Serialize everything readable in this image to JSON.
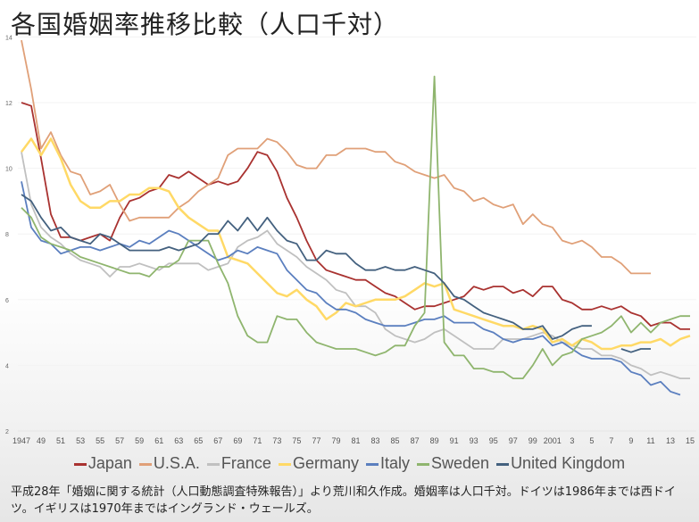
{
  "title": "各国婚姻率推移比較（人口千対）",
  "note": "平成28年「婚姻に関する統計（人口動態調査特殊報告）」より荒川和久作成。婚姻率は人口千対。ドイツは1986年までは西ドイツ。イギリスは1970年まではイングランド・ウェールズ。",
  "legend": [
    {
      "label": "Japan",
      "color": "#a93230"
    },
    {
      "label": "U.S.A.",
      "color": "#e0a078"
    },
    {
      "label": "France",
      "color": "#c0c0c0"
    },
    {
      "label": "Germany",
      "color": "#ffd966"
    },
    {
      "label": "Italy",
      "color": "#5b7fbf"
    },
    {
      "label": "Sweden",
      "color": "#8fb56e"
    },
    {
      "label": "United Kingdom",
      "color": "#44617f"
    }
  ],
  "chart_data": {
    "type": "line",
    "title": "各国婚姻率推移比較（人口千対）",
    "xlabel": "",
    "ylabel": "",
    "ylim": [
      2,
      14
    ],
    "yticks": [
      2,
      4,
      6,
      8,
      10,
      12,
      14
    ],
    "grid": true,
    "legend_position": "bottom",
    "x_tick_labels": [
      "1947",
      "49",
      "51",
      "53",
      "55",
      "57",
      "59",
      "61",
      "63",
      "65",
      "67",
      "69",
      "71",
      "73",
      "75",
      "77",
      "79",
      "81",
      "83",
      "85",
      "87",
      "89",
      "91",
      "93",
      "95",
      "97",
      "99",
      "2001",
      "3",
      "5",
      "7",
      "9",
      "11",
      "13",
      "15"
    ],
    "x": [
      1947,
      1948,
      1949,
      1950,
      1951,
      1952,
      1953,
      1954,
      1955,
      1956,
      1957,
      1958,
      1959,
      1960,
      1961,
      1962,
      1963,
      1964,
      1965,
      1966,
      1967,
      1968,
      1969,
      1970,
      1971,
      1972,
      1973,
      1974,
      1975,
      1976,
      1977,
      1978,
      1979,
      1980,
      1981,
      1982,
      1983,
      1984,
      1985,
      1986,
      1987,
      1988,
      1989,
      1990,
      1991,
      1992,
      1993,
      1994,
      1995,
      1996,
      1997,
      1998,
      1999,
      2000,
      2001,
      2002,
      2003,
      2004,
      2005,
      2006,
      2007,
      2008,
      2009,
      2010,
      2011,
      2012,
      2013,
      2014,
      2015
    ],
    "series": [
      {
        "name": "Japan",
        "color": "#a93230",
        "values": [
          12.0,
          11.9,
          10.3,
          8.6,
          7.9,
          7.9,
          7.8,
          7.9,
          8.0,
          7.8,
          8.5,
          9.0,
          9.1,
          9.3,
          9.4,
          9.8,
          9.7,
          9.9,
          9.7,
          9.5,
          9.6,
          9.5,
          9.6,
          10.0,
          10.5,
          10.4,
          9.9,
          9.1,
          8.5,
          7.8,
          7.2,
          6.9,
          6.8,
          6.7,
          6.6,
          6.6,
          6.4,
          6.2,
          6.1,
          5.9,
          5.7,
          5.8,
          5.8,
          5.9,
          6.0,
          6.1,
          6.4,
          6.3,
          6.4,
          6.4,
          6.2,
          6.3,
          6.1,
          6.4,
          6.4,
          6.0,
          5.9,
          5.7,
          5.7,
          5.8,
          5.7,
          5.8,
          5.6,
          5.5,
          5.2,
          5.3,
          5.3,
          5.1,
          5.1
        ]
      },
      {
        "name": "U.S.A.",
        "color": "#e0a078",
        "values": [
          13.9,
          12.4,
          10.6,
          11.1,
          10.4,
          9.9,
          9.8,
          9.2,
          9.3,
          9.5,
          8.9,
          8.4,
          8.5,
          8.5,
          8.5,
          8.5,
          8.8,
          9.0,
          9.3,
          9.5,
          9.7,
          10.4,
          10.6,
          10.6,
          10.6,
          10.9,
          10.8,
          10.5,
          10.1,
          10.0,
          10.0,
          10.4,
          10.4,
          10.6,
          10.6,
          10.6,
          10.5,
          10.5,
          10.2,
          10.1,
          9.9,
          9.8,
          9.7,
          9.8,
          9.4,
          9.3,
          9.0,
          9.1,
          8.9,
          8.8,
          8.9,
          8.3,
          8.6,
          8.3,
          8.2,
          7.8,
          7.7,
          7.8,
          7.6,
          7.3,
          7.3,
          7.1,
          6.8,
          6.8,
          6.8,
          null,
          null,
          null,
          null
        ]
      },
      {
        "name": "France",
        "color": "#c0c0c0",
        "values": [
          10.5,
          8.9,
          8.2,
          7.9,
          7.7,
          7.4,
          7.2,
          7.1,
          7.0,
          6.7,
          7.0,
          7.0,
          7.1,
          7.0,
          6.9,
          7.1,
          7.1,
          7.1,
          7.1,
          6.9,
          7.0,
          7.1,
          7.6,
          7.8,
          7.9,
          8.1,
          7.7,
          7.5,
          7.3,
          7.0,
          6.8,
          6.6,
          6.3,
          6.2,
          5.8,
          5.8,
          5.6,
          5.1,
          4.9,
          4.8,
          4.7,
          4.8,
          5.0,
          5.1,
          4.9,
          4.7,
          4.5,
          4.5,
          4.5,
          4.8,
          4.8,
          4.8,
          4.9,
          5.0,
          4.9,
          4.7,
          4.6,
          4.5,
          4.5,
          4.3,
          4.3,
          4.2,
          4.0,
          3.9,
          3.7,
          3.8,
          3.7,
          3.6,
          3.6
        ]
      },
      {
        "name": "Germany",
        "color": "#ffd966",
        "values": [
          10.5,
          10.9,
          10.4,
          10.9,
          10.3,
          9.5,
          9.0,
          8.8,
          8.8,
          9.0,
          9.0,
          9.2,
          9.2,
          9.4,
          9.4,
          9.3,
          8.8,
          8.5,
          8.3,
          8.1,
          8.1,
          7.3,
          7.2,
          7.1,
          6.8,
          6.5,
          6.2,
          6.1,
          6.3,
          6.0,
          5.8,
          5.4,
          5.6,
          5.9,
          5.8,
          5.9,
          6.0,
          6.0,
          6.0,
          6.1,
          6.3,
          6.5,
          6.4,
          6.5,
          5.7,
          5.6,
          5.5,
          5.4,
          5.3,
          5.2,
          5.2,
          5.1,
          5.2,
          5.1,
          4.7,
          4.8,
          4.6,
          4.8,
          4.7,
          4.5,
          4.5,
          4.6,
          4.6,
          4.7,
          4.7,
          4.8,
          4.6,
          4.8,
          4.9
        ]
      },
      {
        "name": "Italy",
        "color": "#5b7fbf",
        "values": [
          9.6,
          8.2,
          7.8,
          7.7,
          7.4,
          7.5,
          7.6,
          7.6,
          7.5,
          7.6,
          7.7,
          7.6,
          7.8,
          7.7,
          7.9,
          8.1,
          8.0,
          7.8,
          7.6,
          7.4,
          7.2,
          7.3,
          7.5,
          7.4,
          7.6,
          7.5,
          7.4,
          6.9,
          6.6,
          6.3,
          6.2,
          5.9,
          5.7,
          5.7,
          5.6,
          5.4,
          5.3,
          5.2,
          5.2,
          5.2,
          5.3,
          5.4,
          5.4,
          5.5,
          5.3,
          5.3,
          5.3,
          5.1,
          5.0,
          4.8,
          4.7,
          4.8,
          4.8,
          4.9,
          4.6,
          4.7,
          4.5,
          4.3,
          4.2,
          4.2,
          4.2,
          4.1,
          3.8,
          3.7,
          3.4,
          3.5,
          3.2,
          3.1,
          null
        ]
      },
      {
        "name": "Sweden",
        "color": "#8fb56e",
        "values": [
          8.8,
          8.5,
          7.9,
          7.7,
          7.6,
          7.5,
          7.3,
          7.2,
          7.1,
          7.0,
          6.9,
          6.8,
          6.8,
          6.7,
          7.0,
          7.0,
          7.2,
          7.8,
          7.8,
          7.8,
          7.1,
          6.5,
          5.5,
          4.9,
          4.7,
          4.7,
          5.5,
          5.4,
          5.4,
          5.0,
          4.7,
          4.6,
          4.5,
          4.5,
          4.5,
          4.4,
          4.3,
          4.4,
          4.6,
          4.6,
          5.2,
          5.6,
          12.8,
          4.7,
          4.3,
          4.3,
          3.9,
          3.9,
          3.8,
          3.8,
          3.6,
          3.6,
          4.0,
          4.5,
          4.0,
          4.3,
          4.4,
          4.8,
          4.9,
          5.0,
          5.2,
          5.5,
          5.0,
          5.3,
          5.0,
          5.3,
          5.4,
          5.5,
          5.5
        ]
      },
      {
        "name": "United Kingdom",
        "color": "#44617f",
        "values": [
          9.2,
          9.0,
          8.5,
          8.1,
          8.2,
          7.9,
          7.8,
          7.7,
          8.0,
          7.9,
          7.7,
          7.5,
          7.5,
          7.5,
          7.5,
          7.6,
          7.5,
          7.6,
          7.7,
          8.0,
          8.0,
          8.4,
          8.1,
          8.5,
          8.1,
          8.5,
          8.1,
          7.8,
          7.7,
          7.2,
          7.2,
          7.5,
          7.4,
          7.4,
          7.1,
          6.9,
          6.9,
          7.0,
          6.9,
          6.9,
          7.0,
          6.9,
          6.8,
          6.5,
          6.1,
          6.0,
          5.8,
          5.6,
          5.5,
          5.4,
          5.3,
          5.1,
          5.1,
          5.2,
          4.8,
          4.9,
          5.1,
          5.2,
          5.2,
          null,
          null,
          4.5,
          4.4,
          4.5,
          4.5,
          null,
          null,
          null,
          null
        ]
      }
    ]
  }
}
